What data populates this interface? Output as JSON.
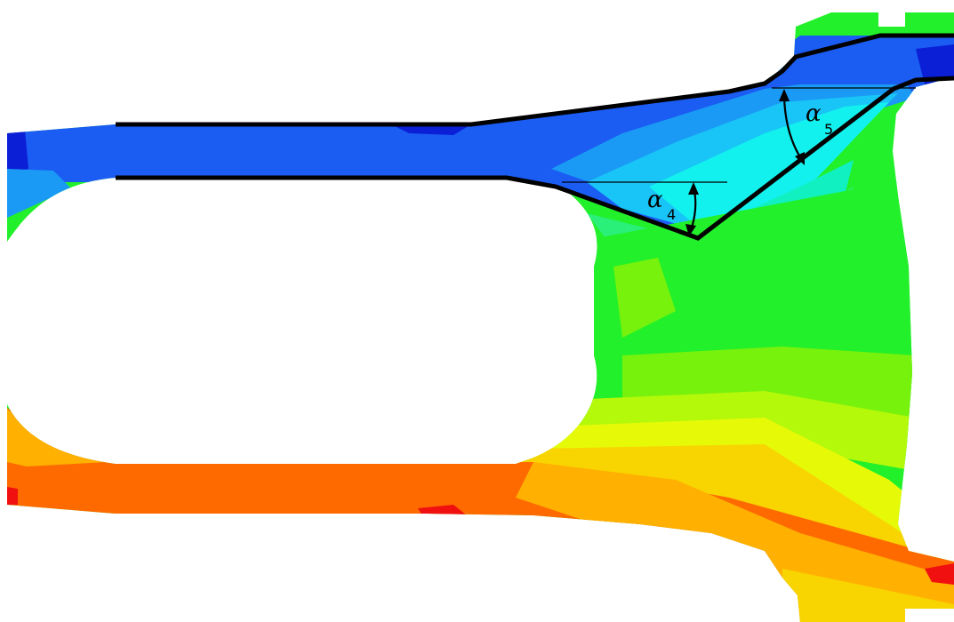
{
  "colors": {
    "navy": "#0a1fd6",
    "blue": "#1b5cf2",
    "azure": "#1a9af5",
    "lightblue": "#19c4f7",
    "cyan": "#13f1ee",
    "aqua": "#10f0c0",
    "springgreen": "#2af07a",
    "green": "#22f02a",
    "lime": "#76f20c",
    "yellowgreen": "#b4f80a",
    "yellow": "#e6fa08",
    "gold": "#f8d400",
    "amber": "#ffb000",
    "orange": "#fe6a00",
    "red": "#f01010",
    "outline": "#000000"
  },
  "annotations": {
    "alpha4": {
      "symbol": "α",
      "subscript": "4"
    },
    "alpha5": {
      "symbol": "α",
      "subscript": "5"
    }
  }
}
